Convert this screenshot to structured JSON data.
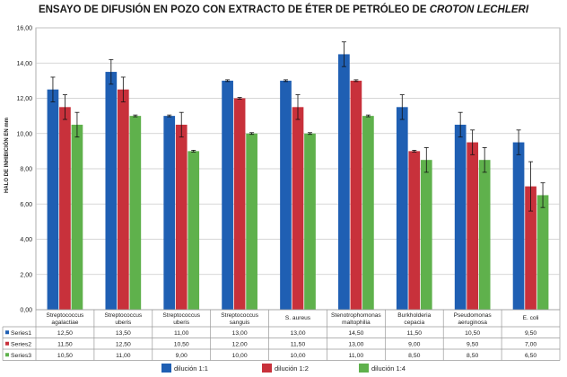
{
  "chart_data": {
    "type": "bar",
    "title_main": "ENSAYO DE DIFUSIÓN EN POZO CON EXTRACTO DE ÉTER DE PETRÓLEO DE",
    "title_species": "CROTON LECHLERI",
    "ylabel": "HALO DE INHIBICIÓN EN mm",
    "ylim": [
      0,
      16
    ],
    "yticks": [
      "0,00",
      "2,00",
      "4,00",
      "6,00",
      "8,00",
      "10,00",
      "12,00",
      "14,00",
      "16,00"
    ],
    "categories": [
      [
        "Streptococcus",
        "agalactiae"
      ],
      [
        "Streptococcus",
        "uberis"
      ],
      [
        "Streptococcus",
        "uberis"
      ],
      [
        "Streptococcus",
        "sanguis"
      ],
      [
        "S. aureus"
      ],
      [
        "Stenotrophomonas",
        "maltophilia"
      ],
      [
        "Burkholderia",
        "cepacia"
      ],
      [
        "Pseudomonas",
        "aeruginosa"
      ],
      [
        "E. coli"
      ]
    ],
    "series": [
      {
        "name": "Series1",
        "color": "#1f5fb3",
        "values": [
          12.5,
          13.5,
          11.0,
          13.0,
          13.0,
          14.5,
          11.5,
          10.5,
          9.5
        ],
        "labels": [
          "12,50",
          "13,50",
          "11,00",
          "13,00",
          "13,00",
          "14,50",
          "11,50",
          "10,50",
          "9,50"
        ],
        "err": [
          0.7,
          0.7,
          0.05,
          0.05,
          0.05,
          0.7,
          0.7,
          0.7,
          0.7
        ]
      },
      {
        "name": "Series2",
        "color": "#c8313b",
        "values": [
          11.5,
          12.5,
          10.5,
          12.0,
          11.5,
          13.0,
          9.0,
          9.5,
          7.0
        ],
        "labels": [
          "11,50",
          "12,50",
          "10,50",
          "12,00",
          "11,50",
          "13,00",
          "9,00",
          "9,50",
          "7,00"
        ],
        "err": [
          0.7,
          0.7,
          0.7,
          0.05,
          0.7,
          0.05,
          0.05,
          0.7,
          1.4
        ]
      },
      {
        "name": "Series3",
        "color": "#5fb14c",
        "values": [
          10.5,
          11.0,
          9.0,
          10.0,
          10.0,
          11.0,
          8.5,
          8.5,
          6.5
        ],
        "labels": [
          "10,50",
          "11,00",
          "9,00",
          "10,00",
          "10,00",
          "11,00",
          "8,50",
          "8,50",
          "6,50"
        ],
        "err": [
          0.7,
          0.05,
          0.05,
          0.05,
          0.05,
          0.05,
          0.7,
          0.7,
          0.7
        ]
      }
    ],
    "legend": {
      "placement": "bottom",
      "items": [
        {
          "label": "dilución 1:1",
          "color": "#1f5fb3"
        },
        {
          "label": "dilución 1:2",
          "color": "#c8313b"
        },
        {
          "label": "dilución 1:4",
          "color": "#5fb14c"
        }
      ]
    },
    "grid": true
  }
}
